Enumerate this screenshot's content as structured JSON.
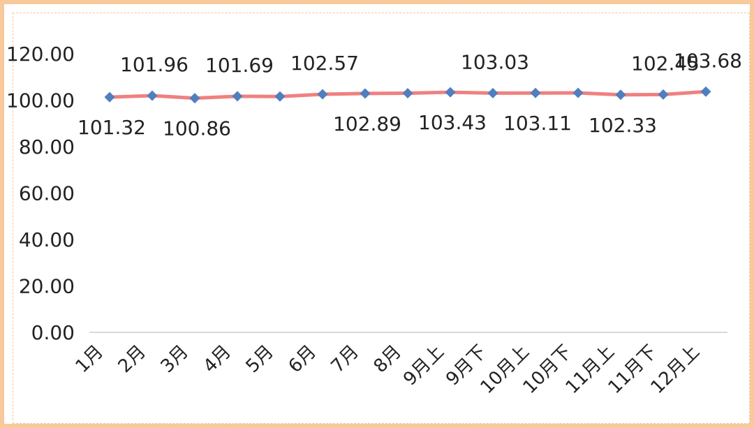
{
  "chart_data": {
    "type": "line",
    "title": "",
    "xlabel": "",
    "ylabel": "",
    "categories": [
      "1月",
      "2月",
      "3月",
      "4月",
      "5月",
      "6月",
      "7月",
      "8月",
      "9月上",
      "9月下",
      "10月上",
      "10月下",
      "11月上",
      "11月下",
      "12月上"
    ],
    "series": [
      {
        "name": "",
        "values": [
          101.32,
          101.96,
          100.86,
          101.69,
          101.6,
          102.57,
          102.89,
          103.0,
          103.43,
          103.03,
          103.11,
          103.15,
          102.33,
          102.45,
          103.68
        ],
        "data_labels": [
          "101.32",
          "101.96",
          "100.86",
          "101.69",
          "",
          "102.57",
          "102.89",
          "",
          "103.43",
          "103.03",
          "103.11",
          "",
          "102.33",
          "102.45",
          "103.68"
        ],
        "line_color": "#f08080",
        "marker_color": "#4f7fbf",
        "marker": "diamond"
      }
    ],
    "ylim": [
      0,
      120
    ],
    "yticks": [
      "0.00",
      "20.00",
      "40.00",
      "60.00",
      "80.00",
      "100.00",
      "120.00"
    ],
    "grid": false,
    "legend": "none"
  },
  "colors": {
    "frame": "#f8c99a",
    "axis": "#d9d9d9"
  }
}
